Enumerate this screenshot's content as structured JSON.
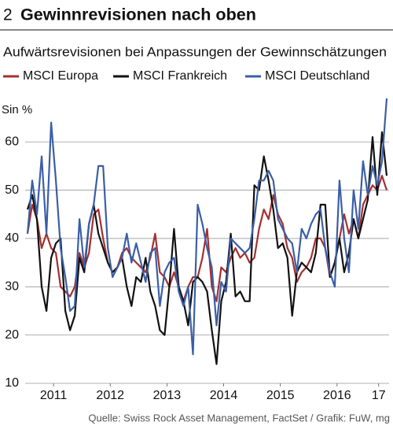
{
  "chart_data": {
    "type": "line",
    "number": "2",
    "title": "Gewinnrevisionen nach oben",
    "subtitle": "Aufwärtsrevisionen bei Anpassungen der Gewinnschätzungen",
    "y_label": "Sin %",
    "source": "Quelle: Swiss Rock Asset Management, FactSet / Grafik: FuW, mg",
    "x": [
      0,
      1,
      2,
      3,
      4,
      5,
      6,
      7,
      8,
      9,
      10,
      11,
      12,
      13,
      14,
      15,
      16,
      17,
      18,
      19,
      20,
      21,
      22,
      23,
      24,
      25,
      26,
      27,
      28,
      29,
      30,
      31,
      32,
      33,
      34,
      35,
      36,
      37,
      38,
      39,
      40,
      41,
      42,
      43,
      44,
      45,
      46,
      47,
      48,
      49,
      50,
      51,
      52,
      53,
      54,
      55,
      56,
      57,
      58,
      59,
      60,
      61,
      62,
      63,
      64,
      65,
      66,
      67,
      68,
      69,
      70,
      71,
      72,
      73,
      74,
      75,
      76
    ],
    "xlim": [
      -0.5,
      76.5
    ],
    "xticks": [
      {
        "value": 5.5,
        "label": "2011"
      },
      {
        "value": 17.5,
        "label": "2012"
      },
      {
        "value": 29.5,
        "label": "2013"
      },
      {
        "value": 41.5,
        "label": "2014"
      },
      {
        "value": 53.5,
        "label": "2015"
      },
      {
        "value": 65.5,
        "label": "2016"
      },
      {
        "value": 74.3,
        "label": "17"
      }
    ],
    "ylim": [
      10,
      69
    ],
    "yticks": [
      10,
      20,
      30,
      40,
      50,
      60
    ],
    "grid": true,
    "series": [
      {
        "name": "MSCI Europa",
        "color": "#a3302f",
        "values": [
          41,
          47,
          44,
          38,
          41,
          38,
          37,
          30,
          29,
          28,
          30,
          37,
          34,
          37,
          45,
          46,
          40,
          35,
          33,
          34,
          37,
          38,
          36,
          35,
          34,
          33,
          36,
          41,
          33,
          32,
          30,
          33,
          30,
          27,
          30,
          32,
          32,
          36,
          42,
          30,
          27,
          34,
          33,
          36,
          38,
          36,
          37,
          35,
          36,
          42,
          46,
          44,
          49,
          45,
          43,
          38,
          36,
          31,
          33,
          34,
          36,
          40,
          40,
          38,
          32,
          35,
          40,
          45,
          41,
          44,
          40,
          47,
          49,
          51,
          50,
          53,
          50
        ]
      },
      {
        "name": "MSCI Frankreich",
        "color": "#111111",
        "values": [
          46,
          49,
          44,
          30,
          25,
          36,
          39,
          40,
          25,
          21,
          24,
          36,
          33,
          43,
          47,
          41,
          38,
          35,
          33,
          34,
          36,
          30,
          26,
          32,
          31,
          36,
          29,
          26,
          21,
          20,
          30,
          42,
          30,
          27,
          22,
          31,
          32,
          31,
          29,
          21,
          14,
          27,
          31,
          41,
          28,
          29,
          27,
          27,
          51,
          50,
          57,
          52,
          46,
          38,
          39,
          36,
          24,
          33,
          35,
          34,
          33,
          37,
          47,
          47,
          32,
          35,
          40,
          33,
          37,
          44,
          40,
          44,
          48,
          61,
          49,
          62,
          53
        ]
      },
      {
        "name": "MSCI Deutschland",
        "color": "#3b5ea6",
        "values": [
          41,
          52,
          45,
          57,
          41,
          64,
          52,
          38,
          32,
          25,
          26,
          44,
          34,
          43,
          47,
          55,
          55,
          38,
          32,
          34,
          36,
          41,
          35,
          39,
          35,
          31,
          37,
          38,
          26,
          33,
          35,
          36,
          29,
          26,
          30,
          16,
          47,
          43,
          38,
          34,
          22,
          31,
          29,
          40,
          39,
          38,
          37,
          38,
          44,
          52,
          52,
          54,
          52,
          44,
          42,
          40,
          39,
          33,
          42,
          40,
          43,
          45,
          46,
          38,
          33,
          30,
          52,
          40,
          33,
          50,
          42,
          56,
          49,
          55,
          51,
          56,
          69
        ]
      }
    ]
  }
}
